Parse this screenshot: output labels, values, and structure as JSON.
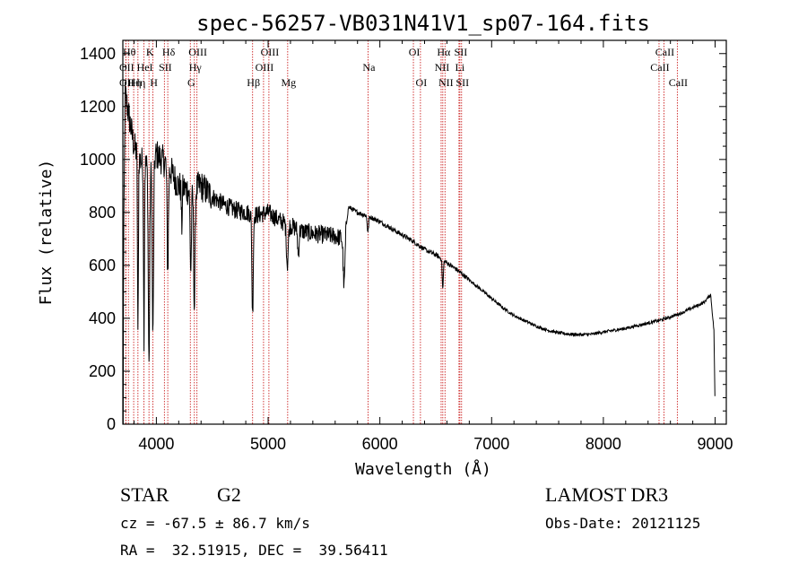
{
  "chart_data": {
    "type": "line",
    "title": "spec-56257-VB031N41V1_sp07-164.fits",
    "xlabel": "Wavelength (Å)",
    "ylabel": "Flux (relative)",
    "xlim": [
      3700,
      9100
    ],
    "ylim": [
      0,
      1450
    ],
    "x_ticks": [
      4000,
      5000,
      6000,
      7000,
      8000,
      9000
    ],
    "x_tick_labels": [
      "4000",
      "5000",
      "6000",
      "7000",
      "8000",
      "9000"
    ],
    "y_ticks": [
      0,
      200,
      400,
      600,
      800,
      1000,
      1200,
      1400
    ],
    "y_tick_labels": [
      "0",
      "200",
      "400",
      "600",
      "800",
      "1000",
      "1200",
      "1400"
    ],
    "continuum": [
      [
        3700,
        320
      ],
      [
        3720,
        1250
      ],
      [
        3760,
        1150
      ],
      [
        3800,
        1050
      ],
      [
        3850,
        1000
      ],
      [
        3900,
        980
      ],
      [
        3950,
        960
      ],
      [
        4000,
        1020
      ],
      [
        4100,
        980
      ],
      [
        4200,
        900
      ],
      [
        4300,
        880
      ],
      [
        4400,
        900
      ],
      [
        4500,
        860
      ],
      [
        4600,
        830
      ],
      [
        4700,
        810
      ],
      [
        4800,
        800
      ],
      [
        4900,
        790
      ],
      [
        5000,
        800
      ],
      [
        5100,
        770
      ],
      [
        5200,
        750
      ],
      [
        5300,
        730
      ],
      [
        5400,
        720
      ],
      [
        5500,
        715
      ],
      [
        5600,
        710
      ],
      [
        5680,
        700
      ],
      [
        5720,
        820
      ],
      [
        5800,
        800
      ],
      [
        5900,
        785
      ],
      [
        6000,
        765
      ],
      [
        6100,
        740
      ],
      [
        6200,
        715
      ],
      [
        6300,
        690
      ],
      [
        6400,
        660
      ],
      [
        6500,
        640
      ],
      [
        6600,
        610
      ],
      [
        6700,
        580
      ],
      [
        6800,
        545
      ],
      [
        6900,
        510
      ],
      [
        7000,
        475
      ],
      [
        7100,
        440
      ],
      [
        7200,
        410
      ],
      [
        7300,
        390
      ],
      [
        7400,
        370
      ],
      [
        7500,
        355
      ],
      [
        7600,
        345
      ],
      [
        7700,
        340
      ],
      [
        7800,
        338
      ],
      [
        7900,
        340
      ],
      [
        8000,
        348
      ],
      [
        8100,
        355
      ],
      [
        8200,
        362
      ],
      [
        8300,
        372
      ],
      [
        8400,
        382
      ],
      [
        8500,
        392
      ],
      [
        8600,
        405
      ],
      [
        8700,
        420
      ],
      [
        8800,
        440
      ],
      [
        8900,
        460
      ],
      [
        8960,
        490
      ],
      [
        8990,
        350
      ],
      [
        9000,
        40
      ]
    ],
    "absorption_features": [
      {
        "center": 3700,
        "depth": 900,
        "width": 3
      },
      {
        "center": 3835,
        "depth": 700,
        "width": 4
      },
      {
        "center": 3889,
        "depth": 650,
        "width": 4
      },
      {
        "center": 3934,
        "depth": 750,
        "width": 6
      },
      {
        "center": 3969,
        "depth": 650,
        "width": 6
      },
      {
        "center": 4102,
        "depth": 400,
        "width": 6
      },
      {
        "center": 4227,
        "depth": 150,
        "width": 4
      },
      {
        "center": 4308,
        "depth": 300,
        "width": 6
      },
      {
        "center": 4340,
        "depth": 450,
        "width": 6
      },
      {
        "center": 4861,
        "depth": 380,
        "width": 6
      },
      {
        "center": 5172,
        "depth": 150,
        "width": 8
      },
      {
        "center": 5270,
        "depth": 100,
        "width": 6
      },
      {
        "center": 5680,
        "depth": 180,
        "width": 8
      },
      {
        "center": 5893,
        "depth": 60,
        "width": 6
      },
      {
        "center": 6563,
        "depth": 110,
        "width": 5
      }
    ],
    "line_markers": [
      {
        "wavelength": 3727,
        "label": "OII",
        "tier": 3
      },
      {
        "wavelength": 3727,
        "label": "OII",
        "tier": 2
      },
      {
        "wavelength": 3750,
        "label": "Hθ",
        "tier": 1
      },
      {
        "wavelength": 3797,
        "label": "Hη",
        "tier": 3
      },
      {
        "wavelength": 3835,
        "label": "Hη",
        "tier": 3
      },
      {
        "wavelength": 3889,
        "label": "HeI",
        "tier": 2
      },
      {
        "wavelength": 3934,
        "label": "K",
        "tier": 1
      },
      {
        "wavelength": 3969,
        "label": "H",
        "tier": 3
      },
      {
        "wavelength": 4072,
        "label": "SII",
        "tier": 2
      },
      {
        "wavelength": 4102,
        "label": "Hδ",
        "tier": 1
      },
      {
        "wavelength": 4304,
        "label": "G",
        "tier": 3
      },
      {
        "wavelength": 4340,
        "label": "Hγ",
        "tier": 2
      },
      {
        "wavelength": 4363,
        "label": "OIII",
        "tier": 1
      },
      {
        "wavelength": 4861,
        "label": "Hβ",
        "tier": 3
      },
      {
        "wavelength": 4959,
        "label": "OIII",
        "tier": 2
      },
      {
        "wavelength": 5007,
        "label": "OIII",
        "tier": 1
      },
      {
        "wavelength": 5175,
        "label": "Mg",
        "tier": 3
      },
      {
        "wavelength": 5894,
        "label": "Na",
        "tier": 2
      },
      {
        "wavelength": 6300,
        "label": "OI",
        "tier": 1
      },
      {
        "wavelength": 6363,
        "label": "OI",
        "tier": 3
      },
      {
        "wavelength": 6548,
        "label": "NII",
        "tier": 2
      },
      {
        "wavelength": 6563,
        "label": "Hα",
        "tier": 1
      },
      {
        "wavelength": 6583,
        "label": "NII",
        "tier": 3
      },
      {
        "wavelength": 6708,
        "label": "Li",
        "tier": 2
      },
      {
        "wavelength": 6716,
        "label": "SII",
        "tier": 1
      },
      {
        "wavelength": 6731,
        "label": "SII",
        "tier": 3
      },
      {
        "wavelength": 8498,
        "label": "CaII",
        "tier": 2
      },
      {
        "wavelength": 8542,
        "label": "CaII",
        "tier": 1
      },
      {
        "wavelength": 8662,
        "label": "CaII",
        "tier": 3
      }
    ]
  },
  "info": {
    "object_class": "STAR",
    "subclass": "G2",
    "survey": "LAMOST DR3",
    "redshift_text": "cz = -67.5 ± 86.7 km/s",
    "obs_date_text": "Obs-Date: 20121125",
    "coords_text": "RA =  32.51915, DEC =  39.56411"
  }
}
